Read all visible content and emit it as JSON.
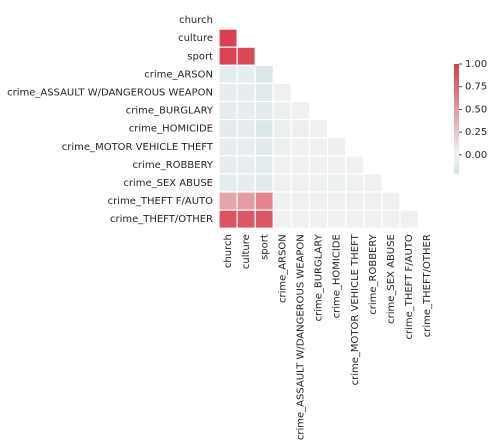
{
  "chart_data": {
    "type": "heatmap",
    "subtype": "lower-triangle correlation matrix",
    "title": "",
    "xlabel": "",
    "ylabel": "",
    "row_labels": [
      "church",
      "culture",
      "sport",
      "crime_ARSON",
      "crime_ASSAULT W/DANGEROUS WEAPON",
      "crime_BURGLARY",
      "crime_HOMICIDE",
      "crime_MOTOR VEHICLE THEFT",
      "crime_ROBBERY",
      "crime_SEX ABUSE",
      "crime_THEFT F/AUTO",
      "crime_THEFT/OTHER"
    ],
    "col_labels": [
      "church",
      "culture",
      "sport",
      "crime_ARSON",
      "crime_ASSAULT W/DANGEROUS WEAPON",
      "crime_BURGLARY",
      "crime_HOMICIDE",
      "crime_MOTOR VEHICLE THEFT",
      "crime_ROBBERY",
      "crime_SEX ABUSE",
      "crime_THEFT F/AUTO",
      "crime_THEFT/OTHER"
    ],
    "values": [
      [
        null,
        null,
        null,
        null,
        null,
        null,
        null,
        null,
        null,
        null,
        null,
        null
      ],
      [
        0.97,
        null,
        null,
        null,
        null,
        null,
        null,
        null,
        null,
        null,
        null,
        null
      ],
      [
        0.95,
        0.93,
        null,
        null,
        null,
        null,
        null,
        null,
        null,
        null,
        null,
        null
      ],
      [
        -0.08,
        -0.07,
        -0.14,
        null,
        null,
        null,
        null,
        null,
        null,
        null,
        null,
        null
      ],
      [
        -0.07,
        -0.07,
        -0.09,
        -0.02,
        null,
        null,
        null,
        null,
        null,
        null,
        null,
        null
      ],
      [
        -0.08,
        -0.07,
        -0.1,
        -0.03,
        -0.02,
        null,
        null,
        null,
        null,
        null,
        null,
        null
      ],
      [
        -0.09,
        -0.08,
        -0.14,
        -0.04,
        -0.03,
        -0.02,
        null,
        null,
        null,
        null,
        null,
        null
      ],
      [
        -0.07,
        -0.06,
        -0.09,
        -0.03,
        -0.02,
        -0.02,
        -0.03,
        null,
        null,
        null,
        null,
        null
      ],
      [
        -0.07,
        -0.06,
        -0.08,
        -0.02,
        -0.02,
        -0.02,
        -0.02,
        -0.02,
        null,
        null,
        null,
        null
      ],
      [
        -0.08,
        -0.07,
        -0.1,
        -0.02,
        -0.02,
        -0.02,
        -0.03,
        -0.02,
        -0.02,
        null,
        null,
        null
      ],
      [
        0.43,
        0.48,
        0.61,
        -0.02,
        -0.02,
        -0.02,
        -0.02,
        -0.02,
        -0.02,
        -0.02,
        null,
        null
      ],
      [
        0.87,
        0.84,
        0.86,
        -0.02,
        -0.02,
        -0.02,
        -0.02,
        -0.02,
        -0.02,
        -0.02,
        -0.02,
        null
      ]
    ],
    "mask": "upper triangle including diagonal",
    "vmin": -0.2,
    "vmax": 1.0,
    "colormap": {
      "low": "#d1e3e7",
      "center": "#f2f2f2",
      "high": "#d73c4d",
      "center_value": 0.0
    },
    "colorbar": {
      "ticks": [
        "0.00",
        "0.25",
        "0.50",
        "0.75",
        "1.00"
      ],
      "tick_values": [
        0.0,
        0.25,
        0.5,
        0.75,
        1.0
      ],
      "placement": "right"
    },
    "grid": false,
    "cell_separator_color": "#ffffff"
  }
}
